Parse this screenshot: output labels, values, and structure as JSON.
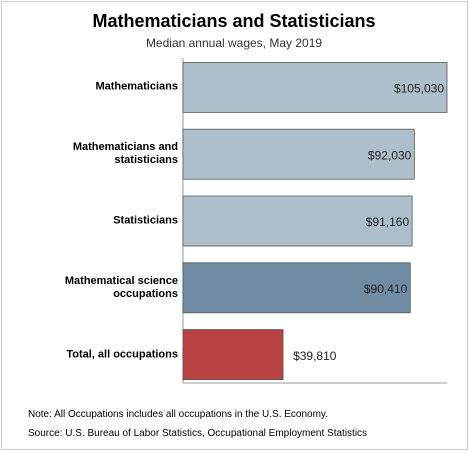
{
  "chart_data": {
    "type": "hbar",
    "title": "Mathematicians and Statisticians",
    "subtitle": "Median annual wages, May 2019",
    "categories": [
      "Mathematicians",
      "Mathematicians and statisticians",
      "Statisticians",
      "Mathematical science occupations",
      "Total, all occupations"
    ],
    "values": [
      105030,
      92030,
      91160,
      90410,
      39810
    ],
    "value_labels": [
      "$105,030",
      "$92,030",
      "$91,160",
      "$90,410",
      "$39,810"
    ],
    "colors": [
      "#adbfcb",
      "#adbfcb",
      "#adbfcb",
      "#6f8ca3",
      "#b94344"
    ],
    "xlim": [
      0,
      105030
    ],
    "notes": [
      "Note: All Occupations includes all occupations in the U.S. Economy.",
      "Source: U.S. Bureau of Labor Statistics, Occupational Employment Statistics"
    ]
  }
}
